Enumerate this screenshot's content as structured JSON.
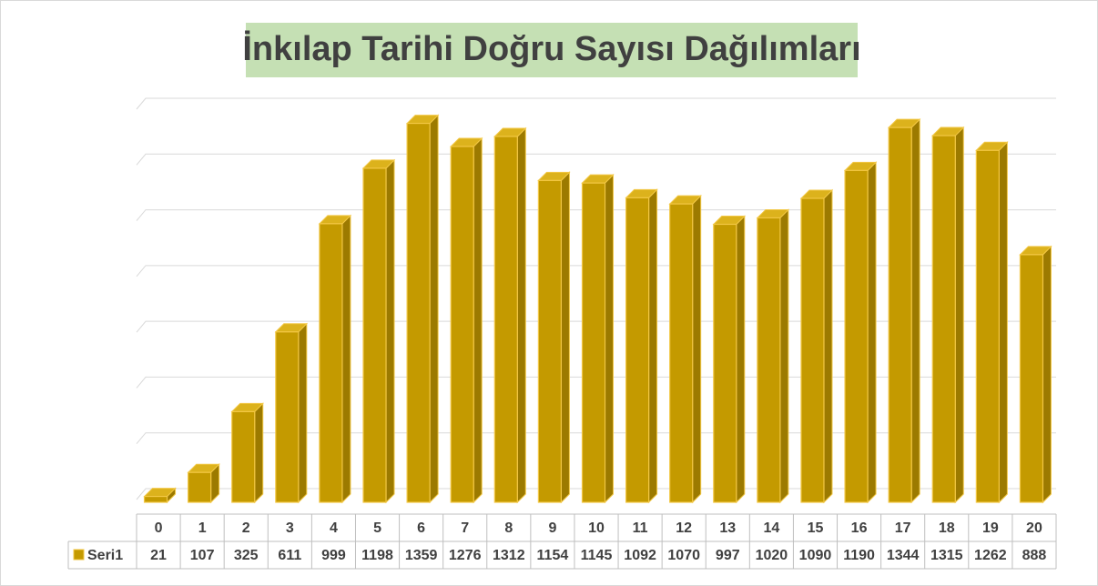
{
  "chart_data": {
    "type": "bar3d",
    "title": "İnkılap Tarihi Doğru Sayısı Dağılımları",
    "categories": [
      "0",
      "1",
      "2",
      "3",
      "4",
      "5",
      "6",
      "7",
      "8",
      "9",
      "10",
      "11",
      "12",
      "13",
      "14",
      "15",
      "16",
      "17",
      "18",
      "19",
      "20"
    ],
    "series": [
      {
        "name": "Seri1",
        "color": "#c49a00",
        "values": [
          21,
          107,
          325,
          611,
          999,
          1198,
          1359,
          1276,
          1312,
          1154,
          1145,
          1092,
          1070,
          997,
          1020,
          1090,
          1190,
          1344,
          1315,
          1262,
          888
        ]
      }
    ],
    "ylim": [
      0,
      1400
    ],
    "yticks": [
      0,
      200,
      400,
      600,
      800,
      1000,
      1200,
      1400
    ],
    "grid": true
  }
}
